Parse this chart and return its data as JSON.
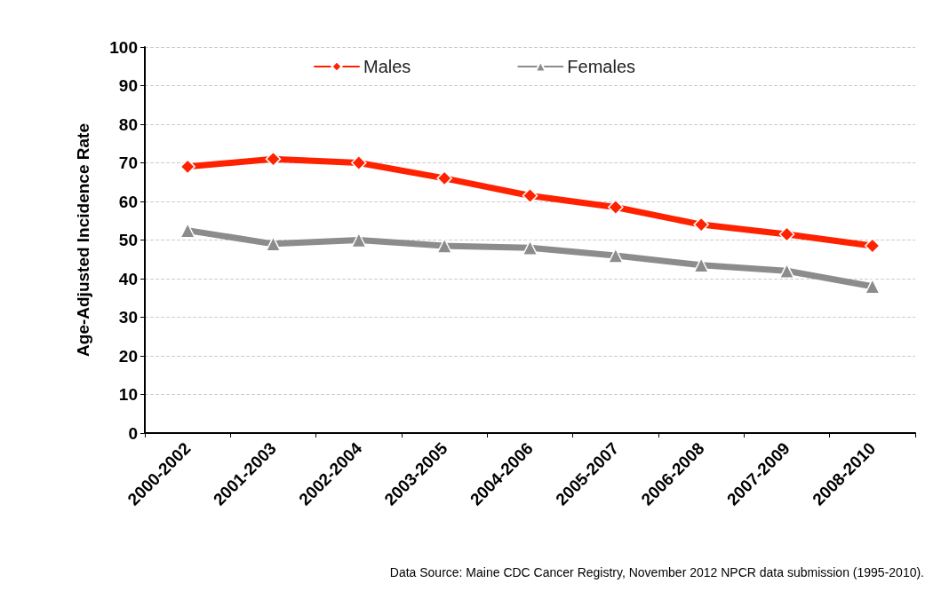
{
  "chart_data": {
    "type": "line",
    "ylabel": "Age-Adjusted Incidence Rate",
    "categories": [
      "2000-2002",
      "2001-2003",
      "2002-2004",
      "2003-2005",
      "2004-2006",
      "2005-2007",
      "2006-2008",
      "2007-2009",
      "2008-2010"
    ],
    "series": [
      {
        "name": "Males",
        "color": "#ff2200",
        "marker": "diamond",
        "values": [
          69,
          71,
          70,
          66,
          61.5,
          58.5,
          54,
          51.5,
          48.5
        ]
      },
      {
        "name": "Females",
        "color": "#8c8c8c",
        "marker": "triangle",
        "values": [
          52.5,
          49,
          50,
          48.5,
          48,
          46,
          43.5,
          42,
          38
        ]
      }
    ],
    "ylim": [
      0,
      100
    ],
    "yticks": [
      0,
      10,
      20,
      30,
      40,
      50,
      60,
      70,
      80,
      90,
      100
    ],
    "grid": "y",
    "legend": "top",
    "annotations": [
      "Data Source: Maine CDC Cancer Registry, November 2012 NPCR data submission (1995-2010)."
    ]
  }
}
